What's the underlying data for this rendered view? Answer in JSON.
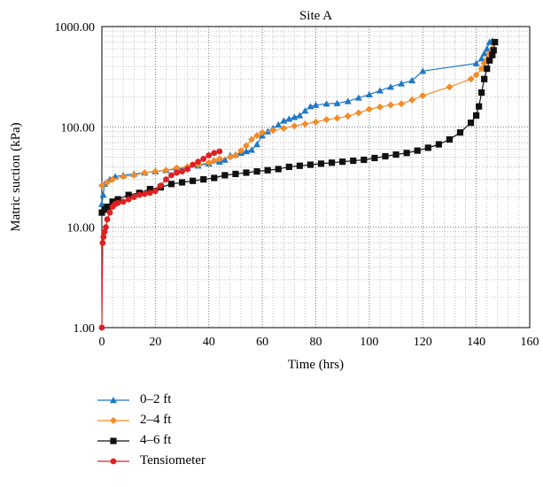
{
  "chart_data": {
    "type": "scatter",
    "title": "Site A",
    "xlabel": "Time (hrs)",
    "ylabel": "Matric suction (kPa)",
    "xlim": [
      0,
      160
    ],
    "ylim": [
      1,
      1000
    ],
    "yscale": "log",
    "x_ticks": [
      "0",
      "20",
      "40",
      "60",
      "80",
      "100",
      "120",
      "140",
      "160"
    ],
    "y_ticks": [
      "1.00",
      "10.00",
      "100.00",
      "1000.00"
    ],
    "grid": "dotted major and minor",
    "legend_position": "bottom-left, below plot",
    "series": [
      {
        "name": "0–2 ft",
        "color": "#1f77c4",
        "marker": "triangle",
        "points": [
          [
            0,
            17
          ],
          [
            0.5,
            21
          ],
          [
            1,
            27
          ],
          [
            3,
            30
          ],
          [
            5,
            32
          ],
          [
            8,
            33
          ],
          [
            12,
            34
          ],
          [
            16,
            35
          ],
          [
            20,
            36
          ],
          [
            24,
            37
          ],
          [
            28,
            38
          ],
          [
            32,
            39
          ],
          [
            36,
            41
          ],
          [
            40,
            43
          ],
          [
            44,
            45
          ],
          [
            46,
            47
          ],
          [
            48,
            52
          ],
          [
            50,
            53
          ],
          [
            52,
            55
          ],
          [
            54,
            57
          ],
          [
            56,
            59
          ],
          [
            58,
            67
          ],
          [
            60,
            82
          ],
          [
            62,
            90
          ],
          [
            64,
            97
          ],
          [
            66,
            105
          ],
          [
            68,
            115
          ],
          [
            70,
            120
          ],
          [
            72,
            125
          ],
          [
            74,
            130
          ],
          [
            76,
            145
          ],
          [
            78,
            160
          ],
          [
            80,
            165
          ],
          [
            84,
            170
          ],
          [
            88,
            172
          ],
          [
            92,
            180
          ],
          [
            96,
            195
          ],
          [
            100,
            210
          ],
          [
            104,
            230
          ],
          [
            108,
            250
          ],
          [
            112,
            270
          ],
          [
            116,
            290
          ],
          [
            120,
            360
          ],
          [
            140,
            430
          ],
          [
            142,
            480
          ],
          [
            143,
            540
          ],
          [
            144,
            600
          ],
          [
            145,
            700
          ],
          [
            146,
            720
          ]
        ]
      },
      {
        "name": "2–4 ft",
        "color": "#f28c28",
        "marker": "diamond",
        "points": [
          [
            0,
            26
          ],
          [
            2,
            28
          ],
          [
            4,
            30
          ],
          [
            8,
            32
          ],
          [
            12,
            33
          ],
          [
            16,
            35
          ],
          [
            20,
            36
          ],
          [
            24,
            37
          ],
          [
            28,
            39
          ],
          [
            32,
            40
          ],
          [
            36,
            42
          ],
          [
            40,
            44
          ],
          [
            42,
            46
          ],
          [
            44,
            48
          ],
          [
            48,
            50
          ],
          [
            50,
            52
          ],
          [
            52,
            58
          ],
          [
            54,
            65
          ],
          [
            56,
            75
          ],
          [
            58,
            82
          ],
          [
            60,
            88
          ],
          [
            64,
            92
          ],
          [
            68,
            97
          ],
          [
            72,
            102
          ],
          [
            76,
            107
          ],
          [
            80,
            112
          ],
          [
            84,
            118
          ],
          [
            88,
            122
          ],
          [
            92,
            128
          ],
          [
            96,
            138
          ],
          [
            100,
            150
          ],
          [
            104,
            158
          ],
          [
            108,
            165
          ],
          [
            112,
            170
          ],
          [
            116,
            185
          ],
          [
            120,
            205
          ],
          [
            130,
            250
          ],
          [
            138,
            300
          ],
          [
            140,
            330
          ],
          [
            142,
            380
          ],
          [
            143,
            430
          ],
          [
            144,
            470
          ],
          [
            145,
            540
          ],
          [
            146,
            600
          ]
        ]
      },
      {
        "name": "4–6 ft",
        "color": "#111111",
        "marker": "square",
        "points": [
          [
            0,
            14
          ],
          [
            1,
            15
          ],
          [
            2,
            16
          ],
          [
            4,
            18
          ],
          [
            6,
            19
          ],
          [
            10,
            21
          ],
          [
            14,
            22
          ],
          [
            18,
            24
          ],
          [
            22,
            25
          ],
          [
            26,
            27
          ],
          [
            30,
            28
          ],
          [
            34,
            29
          ],
          [
            38,
            30
          ],
          [
            42,
            31
          ],
          [
            46,
            33
          ],
          [
            50,
            34
          ],
          [
            54,
            35
          ],
          [
            58,
            36
          ],
          [
            62,
            37
          ],
          [
            66,
            38
          ],
          [
            70,
            40
          ],
          [
            74,
            41
          ],
          [
            78,
            42
          ],
          [
            82,
            43
          ],
          [
            86,
            44
          ],
          [
            90,
            45
          ],
          [
            94,
            46
          ],
          [
            98,
            47
          ],
          [
            102,
            49
          ],
          [
            106,
            51
          ],
          [
            110,
            53
          ],
          [
            114,
            55
          ],
          [
            118,
            58
          ],
          [
            122,
            62
          ],
          [
            126,
            67
          ],
          [
            130,
            75
          ],
          [
            134,
            88
          ],
          [
            138,
            110
          ],
          [
            140,
            130
          ],
          [
            141,
            160
          ],
          [
            142,
            220
          ],
          [
            143,
            300
          ],
          [
            144,
            380
          ],
          [
            145,
            460
          ],
          [
            146,
            520
          ],
          [
            146.5,
            580
          ],
          [
            147,
            700
          ]
        ]
      },
      {
        "name": "Tensiometer",
        "color": "#e02020",
        "marker": "circle",
        "points": [
          [
            0,
            1
          ],
          [
            0.3,
            7
          ],
          [
            0.6,
            8
          ],
          [
            1,
            9
          ],
          [
            1.5,
            10
          ],
          [
            2,
            12
          ],
          [
            3,
            14
          ],
          [
            4,
            16
          ],
          [
            5,
            17
          ],
          [
            6,
            17.5
          ],
          [
            8,
            18
          ],
          [
            10,
            19
          ],
          [
            12,
            20
          ],
          [
            14,
            21
          ],
          [
            16,
            21.5
          ],
          [
            18,
            22
          ],
          [
            20,
            23
          ],
          [
            22,
            26
          ],
          [
            24,
            30
          ],
          [
            26,
            33
          ],
          [
            28,
            35
          ],
          [
            30,
            36
          ],
          [
            32,
            38
          ],
          [
            34,
            42
          ],
          [
            36,
            45
          ],
          [
            38,
            48
          ],
          [
            40,
            52
          ],
          [
            42,
            55
          ],
          [
            44,
            57
          ]
        ]
      }
    ]
  }
}
